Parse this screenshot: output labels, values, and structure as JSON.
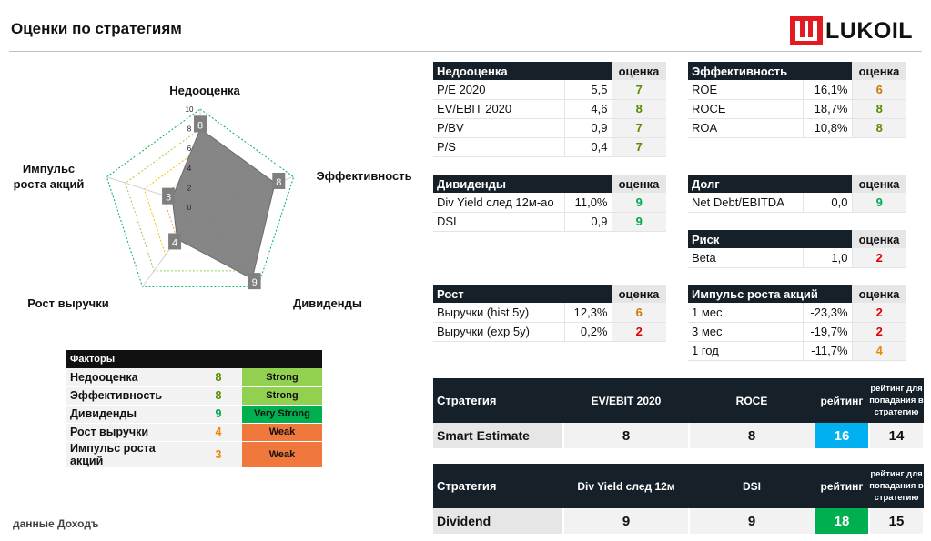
{
  "header": {
    "title": "Оценки по стратегиям",
    "logo_text": "LUKOIL"
  },
  "colors": {
    "header_bg": "#152028",
    "brand_red": "#e21a22",
    "radar_fill": "#808080",
    "rate_blue": "#00b0f0",
    "rate_green": "#00b050",
    "strong": "#92d050",
    "very_strong": "#00b050",
    "weak": "#f0783c"
  },
  "radar": {
    "axes": [
      "Недооценка",
      "Эффективность",
      "Дивиденды",
      "Рост выручки",
      "Импульс роста акций"
    ],
    "values": [
      8,
      8,
      9,
      4,
      3
    ],
    "ticks": [
      "10",
      "8",
      "6",
      "4",
      "2",
      "0"
    ],
    "max": 10
  },
  "tables": {
    "valuation": {
      "title": "Недооценка",
      "score_header": "оценка",
      "rows": [
        {
          "name": "P/E 2020",
          "value": "5,5",
          "score": "7"
        },
        {
          "name": "EV/EBIT 2020",
          "value": "4,6",
          "score": "8"
        },
        {
          "name": "P/BV",
          "value": "0,9",
          "score": "7"
        },
        {
          "name": "P/S",
          "value": "0,4",
          "score": "7"
        }
      ]
    },
    "efficiency": {
      "title": "Эффективность",
      "score_header": "оценка",
      "rows": [
        {
          "name": "ROE",
          "value": "16,1%",
          "score": "6"
        },
        {
          "name": "ROCE",
          "value": "18,7%",
          "score": "8"
        },
        {
          "name": "ROA",
          "value": "10,8%",
          "score": "8"
        }
      ]
    },
    "dividends": {
      "title": "Дивиденды",
      "score_header": "оценка",
      "rows": [
        {
          "name": "Div Yield след 12м-ао",
          "value": "11,0%",
          "score": "9"
        },
        {
          "name": "DSI",
          "value": "0,9",
          "score": "9"
        }
      ]
    },
    "debt": {
      "title": "Долг",
      "score_header": "оценка",
      "rows": [
        {
          "name": "Net Debt/EBITDA",
          "value": "0,0",
          "score": "9"
        }
      ]
    },
    "risk": {
      "title": "Риск",
      "score_header": "оценка",
      "rows": [
        {
          "name": "Beta",
          "value": "1,0",
          "score": "2"
        }
      ]
    },
    "growth": {
      "title": "Рост",
      "score_header": "оценка",
      "rows": [
        {
          "name": "Выручки (hist 5y)",
          "value": "12,3%",
          "score": "6"
        },
        {
          "name": "Выручки (exp 5y)",
          "value": "0,2%",
          "score": "2"
        }
      ]
    },
    "momentum": {
      "title": "Импульс роста акций",
      "score_header": "оценка",
      "rows": [
        {
          "name": "1 мес",
          "value": "-23,3%",
          "score": "2"
        },
        {
          "name": "3 мес",
          "value": "-19,7%",
          "score": "2"
        },
        {
          "name": "1 год",
          "value": "-11,7%",
          "score": "4"
        }
      ]
    }
  },
  "factors": {
    "title": "Факторы",
    "rows": [
      {
        "name": "Недооценка",
        "score": "8",
        "level": "Strong"
      },
      {
        "name": "Эффективность",
        "score": "8",
        "level": "Strong"
      },
      {
        "name": "Дивиденды",
        "score": "9",
        "level": "Very Strong"
      },
      {
        "name": "Рост выручки",
        "score": "4",
        "level": "Weak"
      },
      {
        "name": "Импульс роста акций",
        "score": "3",
        "level": "Weak"
      }
    ]
  },
  "strategies": [
    {
      "header": {
        "name": "Стратегия",
        "m1": "EV/EBIT 2020",
        "m2": "ROCE",
        "rating": "рейтинг",
        "threshold": "рейтинг для попадания в стратегию"
      },
      "row": {
        "name": "Smart Estimate",
        "m1": "8",
        "m2": "8",
        "rating": "16",
        "threshold": "14"
      }
    },
    {
      "header": {
        "name": "Стратегия",
        "m1": "Div Yield след 12м",
        "m2": "DSI",
        "rating": "рейтинг",
        "threshold": "рейтинг для попадания в стратегию"
      },
      "row": {
        "name": "Dividend",
        "m1": "9",
        "m2": "9",
        "rating": "18",
        "threshold": "15"
      }
    }
  ],
  "footer": {
    "source": "данные Доходъ"
  }
}
